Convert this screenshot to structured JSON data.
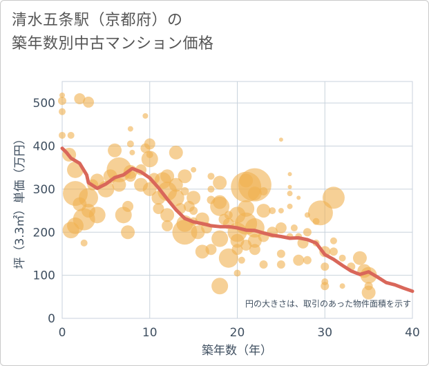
{
  "title_line1": "清水五条駅（京都府）の",
  "title_line2": "築年数別中古マンション価格",
  "chart_data": {
    "type": "scatter",
    "xlabel": "築年数（年）",
    "ylabel": "坪（3.3㎡）単価（万円）",
    "xlim": [
      0,
      40
    ],
    "ylim": [
      0,
      550
    ],
    "xticks": [
      "0",
      "10",
      "20",
      "30",
      "40"
    ],
    "yticks": [
      "0",
      "100",
      "200",
      "300",
      "400",
      "500"
    ],
    "grid": true,
    "annotation": "円の大きさは、取引のあった物件面積を示す",
    "colors": {
      "bubble": "#f0b050",
      "line": "#d9675a",
      "grid": "#c8d2dc"
    },
    "bubbles": [
      [
        0,
        518,
        4
      ],
      [
        0,
        505,
        6
      ],
      [
        0,
        480,
        5
      ],
      [
        0,
        425,
        5
      ],
      [
        1,
        425,
        5
      ],
      [
        2,
        510,
        8
      ],
      [
        3,
        502,
        8
      ],
      [
        0.8,
        380,
        10
      ],
      [
        1.5,
        345,
        12
      ],
      [
        1.5,
        290,
        18
      ],
      [
        2,
        265,
        10
      ],
      [
        1.5,
        215,
        12
      ],
      [
        1,
        205,
        12
      ],
      [
        2.5,
        230,
        16
      ],
      [
        3,
        250,
        10
      ],
      [
        3,
        280,
        14
      ],
      [
        3.5,
        310,
        8
      ],
      [
        4,
        320,
        10
      ],
      [
        4,
        240,
        12
      ],
      [
        2.5,
        175,
        5
      ],
      [
        5,
        300,
        12
      ],
      [
        5.5,
        330,
        10
      ],
      [
        6,
        390,
        10
      ],
      [
        6.5,
        310,
        10
      ],
      [
        6.5,
        345,
        18
      ],
      [
        7,
        240,
        12
      ],
      [
        7.5,
        200,
        10
      ],
      [
        7.5,
        260,
        8
      ],
      [
        7.8,
        330,
        8
      ],
      [
        7.8,
        340,
        10
      ],
      [
        7.8,
        440,
        4
      ],
      [
        7.8,
        405,
        5
      ],
      [
        8,
        385,
        4
      ],
      [
        9,
        310,
        10
      ],
      [
        9,
        345,
        8
      ],
      [
        9.5,
        470,
        4
      ],
      [
        9.5,
        395,
        7
      ],
      [
        10,
        370,
        12
      ],
      [
        10,
        300,
        10
      ],
      [
        10,
        405,
        8
      ],
      [
        10,
        380,
        5
      ],
      [
        10.5,
        325,
        8
      ],
      [
        11,
        280,
        10
      ],
      [
        11,
        255,
        8
      ],
      [
        11.5,
        320,
        12
      ],
      [
        12,
        330,
        10
      ],
      [
        12,
        295,
        14
      ],
      [
        12,
        240,
        10
      ],
      [
        12,
        215,
        8
      ],
      [
        13,
        310,
        10
      ],
      [
        13,
        280,
        12
      ],
      [
        13,
        385,
        10
      ],
      [
        13.5,
        255,
        8
      ],
      [
        14,
        330,
        10
      ],
      [
        14,
        295,
        6
      ],
      [
        14,
        220,
        12
      ],
      [
        14,
        200,
        18
      ],
      [
        14.5,
        260,
        8
      ],
      [
        15,
        280,
        10
      ],
      [
        15,
        250,
        6
      ],
      [
        15,
        225,
        6
      ],
      [
        15,
        345,
        4
      ],
      [
        15.5,
        200,
        10
      ],
      [
        16,
        230,
        10
      ],
      [
        16,
        155,
        10
      ],
      [
        16.5,
        210,
        8
      ],
      [
        17,
        330,
        5
      ],
      [
        17,
        300,
        5
      ],
      [
        17,
        275,
        6
      ],
      [
        17,
        160,
        8
      ],
      [
        18,
        270,
        10
      ],
      [
        18,
        260,
        14
      ],
      [
        18,
        315,
        10
      ],
      [
        18,
        185,
        12
      ],
      [
        18,
        75,
        12
      ],
      [
        18.5,
        230,
        8
      ],
      [
        19,
        240,
        6
      ],
      [
        19,
        140,
        14
      ],
      [
        19,
        220,
        8
      ],
      [
        20,
        240,
        12
      ],
      [
        20,
        200,
        14
      ],
      [
        20,
        180,
        10
      ],
      [
        20,
        160,
        8
      ],
      [
        20,
        105,
        5
      ],
      [
        20.5,
        135,
        5
      ],
      [
        21,
        305,
        22
      ],
      [
        21,
        320,
        10
      ],
      [
        21,
        255,
        12
      ],
      [
        21,
        220,
        16
      ],
      [
        21,
        170,
        8
      ],
      [
        22,
        310,
        24
      ],
      [
        22,
        290,
        10
      ],
      [
        22,
        210,
        14
      ],
      [
        22,
        180,
        10
      ],
      [
        22,
        160,
        8
      ],
      [
        23,
        250,
        10
      ],
      [
        23,
        190,
        8
      ],
      [
        23,
        125,
        6
      ],
      [
        23,
        295,
        6
      ],
      [
        24,
        200,
        8
      ],
      [
        24,
        250,
        5
      ],
      [
        25,
        415,
        3
      ],
      [
        25,
        250,
        4
      ],
      [
        25,
        210,
        8
      ],
      [
        25,
        150,
        6
      ],
      [
        25,
        125,
        6
      ],
      [
        26,
        335,
        3
      ],
      [
        26,
        305,
        3
      ],
      [
        26,
        290,
        4
      ],
      [
        26,
        260,
        4
      ],
      [
        26,
        190,
        5
      ],
      [
        26.5,
        210,
        5
      ],
      [
        27,
        280,
        3
      ],
      [
        27,
        190,
        5
      ],
      [
        27,
        135,
        8
      ],
      [
        27.5,
        175,
        8
      ],
      [
        28,
        240,
        4
      ],
      [
        28,
        200,
        6
      ],
      [
        28,
        135,
        6
      ],
      [
        29,
        225,
        5
      ],
      [
        29,
        175,
        5
      ],
      [
        29.5,
        245,
        18
      ],
      [
        30,
        155,
        8
      ],
      [
        30,
        120,
        6
      ],
      [
        30,
        85,
        5
      ],
      [
        30,
        75,
        6
      ],
      [
        31,
        280,
        16
      ],
      [
        31,
        180,
        5
      ],
      [
        31,
        155,
        6
      ],
      [
        32,
        140,
        5
      ],
      [
        32,
        75,
        4
      ],
      [
        33,
        120,
        6
      ],
      [
        34,
        140,
        10
      ],
      [
        34.5,
        110,
        10
      ],
      [
        35,
        100,
        12
      ],
      [
        35,
        75,
        6
      ],
      [
        35,
        60,
        10
      ]
    ],
    "trend": [
      [
        0,
        395
      ],
      [
        0.5,
        385
      ],
      [
        1,
        372
      ],
      [
        2,
        360
      ],
      [
        2.8,
        333
      ],
      [
        3,
        315
      ],
      [
        4,
        302
      ],
      [
        5,
        312
      ],
      [
        6,
        327
      ],
      [
        7,
        333
      ],
      [
        8,
        348
      ],
      [
        9,
        340
      ],
      [
        10,
        326
      ],
      [
        11,
        303
      ],
      [
        12,
        277
      ],
      [
        13,
        252
      ],
      [
        14,
        232
      ],
      [
        15,
        224
      ],
      [
        16,
        220
      ],
      [
        17,
        215
      ],
      [
        18,
        213
      ],
      [
        19,
        213
      ],
      [
        20,
        210
      ],
      [
        21,
        205
      ],
      [
        22,
        204
      ],
      [
        23,
        198
      ],
      [
        24,
        193
      ],
      [
        25,
        190
      ],
      [
        26,
        186
      ],
      [
        27,
        187
      ],
      [
        28,
        183
      ],
      [
        29,
        175
      ],
      [
        30,
        148
      ],
      [
        31,
        137
      ],
      [
        32,
        123
      ],
      [
        33,
        110
      ],
      [
        34,
        102
      ],
      [
        35,
        108
      ],
      [
        36,
        96
      ],
      [
        37,
        83
      ],
      [
        38,
        78
      ],
      [
        39,
        70
      ],
      [
        40,
        63
      ]
    ]
  }
}
